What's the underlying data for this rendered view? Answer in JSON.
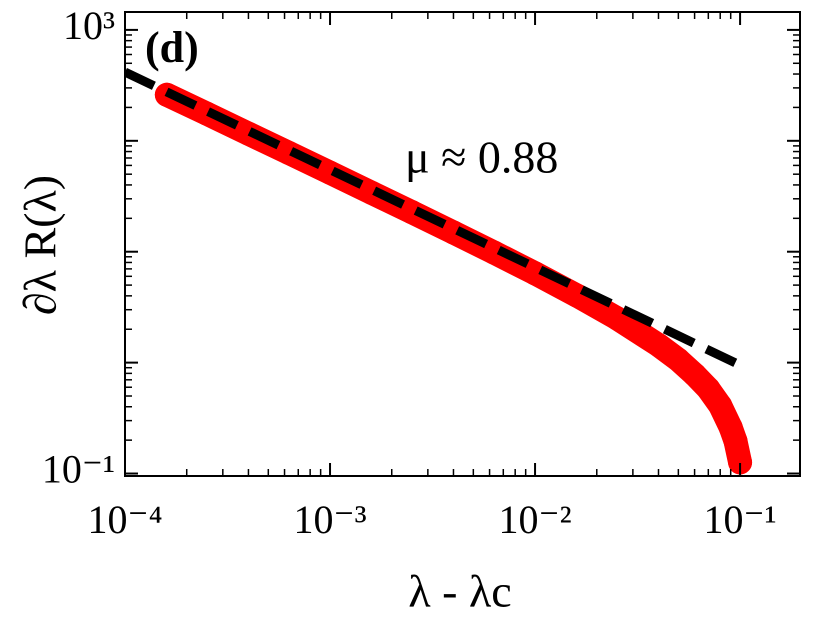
{
  "chart_data": {
    "type": "scatter",
    "x_label": "λ - λc",
    "y_label": "∂λ R(λ)",
    "annotations": [
      "(d)",
      "μ ≈ 0.88"
    ],
    "log_x": true,
    "log_y": true,
    "xlim": [
      0.0001,
      0.196
    ],
    "ylim": [
      0.095,
      1450
    ],
    "xticks": [
      {
        "value": 0.0001,
        "label": "10⁻⁴"
      },
      {
        "value": 0.001,
        "label": "10⁻³"
      },
      {
        "value": 0.01,
        "label": "10⁻²"
      },
      {
        "value": 0.1,
        "label": "10⁻¹"
      }
    ],
    "yticks": [
      {
        "value": 1000,
        "label": "10³"
      },
      {
        "value": 100,
        "label": ""
      },
      {
        "value": 10,
        "label": ""
      },
      {
        "value": 1,
        "label": ""
      },
      {
        "value": 0.1,
        "label": "10⁻¹"
      }
    ],
    "series": [
      {
        "kind": "points",
        "color": "#ff0000",
        "x": [
          0.00016,
          0.00025,
          0.0004,
          0.00063,
          0.001,
          0.0016,
          0.0025,
          0.004,
          0.0063,
          0.01,
          0.016,
          0.025,
          0.04,
          0.05,
          0.06,
          0.07,
          0.08,
          0.09,
          0.095,
          0.1
        ],
        "values": [
          260,
          176,
          116,
          77.7,
          51.6,
          33.9,
          22.8,
          14.9,
          9.84,
          6.38,
          4.02,
          2.52,
          1.44,
          1.06,
          0.78,
          0.58,
          0.41,
          0.26,
          0.196,
          0.126
        ]
      },
      {
        "kind": "fit",
        "color": "#000000",
        "x": [
          0.0001,
          0.1
        ],
        "values": [
          417,
          0.95
        ]
      }
    ]
  }
}
